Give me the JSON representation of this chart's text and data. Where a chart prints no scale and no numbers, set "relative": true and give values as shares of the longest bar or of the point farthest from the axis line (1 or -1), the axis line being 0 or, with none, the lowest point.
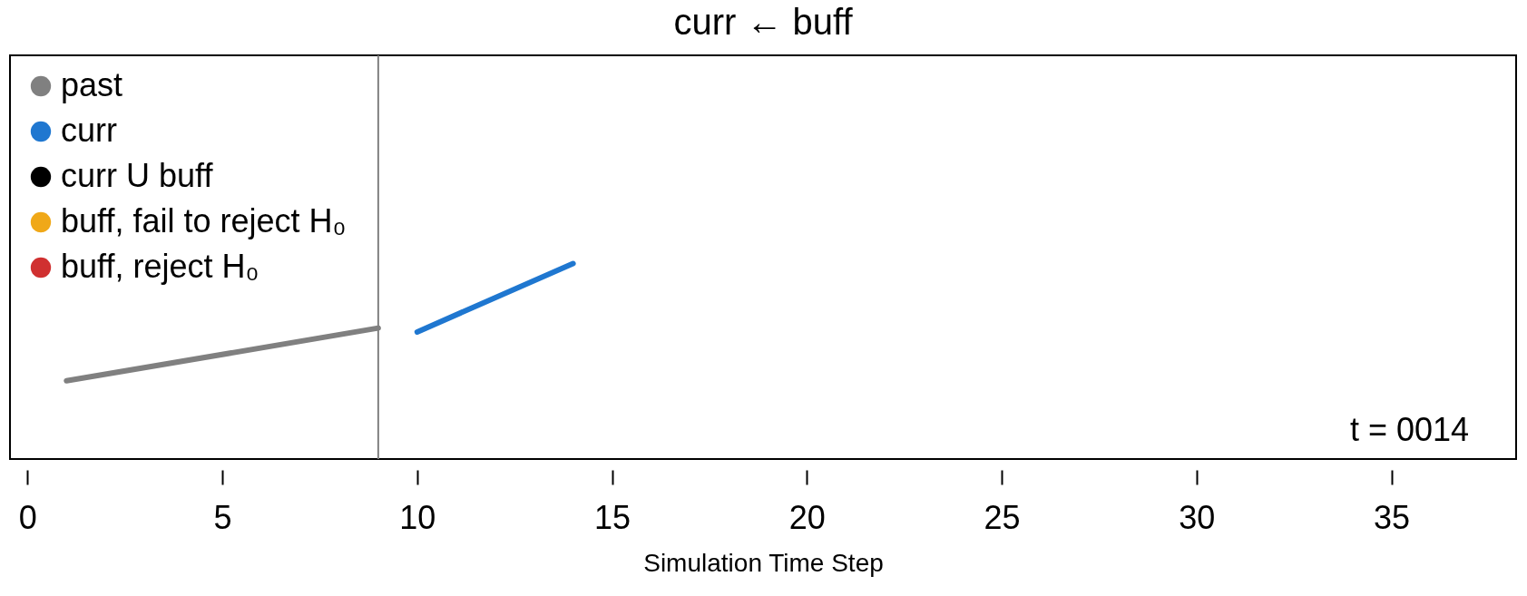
{
  "chart_data": {
    "type": "line",
    "title": "curr ← buff",
    "xlabel": "Simulation Time Step",
    "relative": true,
    "xlim": [
      -0.45,
      38.2
    ],
    "xticks": [
      0,
      5,
      10,
      15,
      20,
      25,
      30,
      35
    ],
    "grid": false,
    "legend": "top left",
    "marker": "none",
    "line_style": "solid",
    "series": [
      {
        "name": "past",
        "color": "#808080",
        "x": [
          1,
          9
        ],
        "values": [
          0.4,
          0.67
        ]
      },
      {
        "name": "curr",
        "color": "#1f77d0",
        "x": [
          10,
          14
        ],
        "values": [
          0.65,
          1
        ]
      },
      {
        "name": "curr U buff",
        "color": "#000000"
      },
      {
        "name": "buff, fail to reject H₀",
        "color": "#f0a818"
      },
      {
        "name": "buff, reject H₀",
        "color": "#d03030"
      }
    ],
    "ref_lines": [
      {
        "axis": "x",
        "value": 9,
        "label": null,
        "color": "#808080"
      }
    ],
    "annotations": [
      "t = 0014"
    ]
  }
}
